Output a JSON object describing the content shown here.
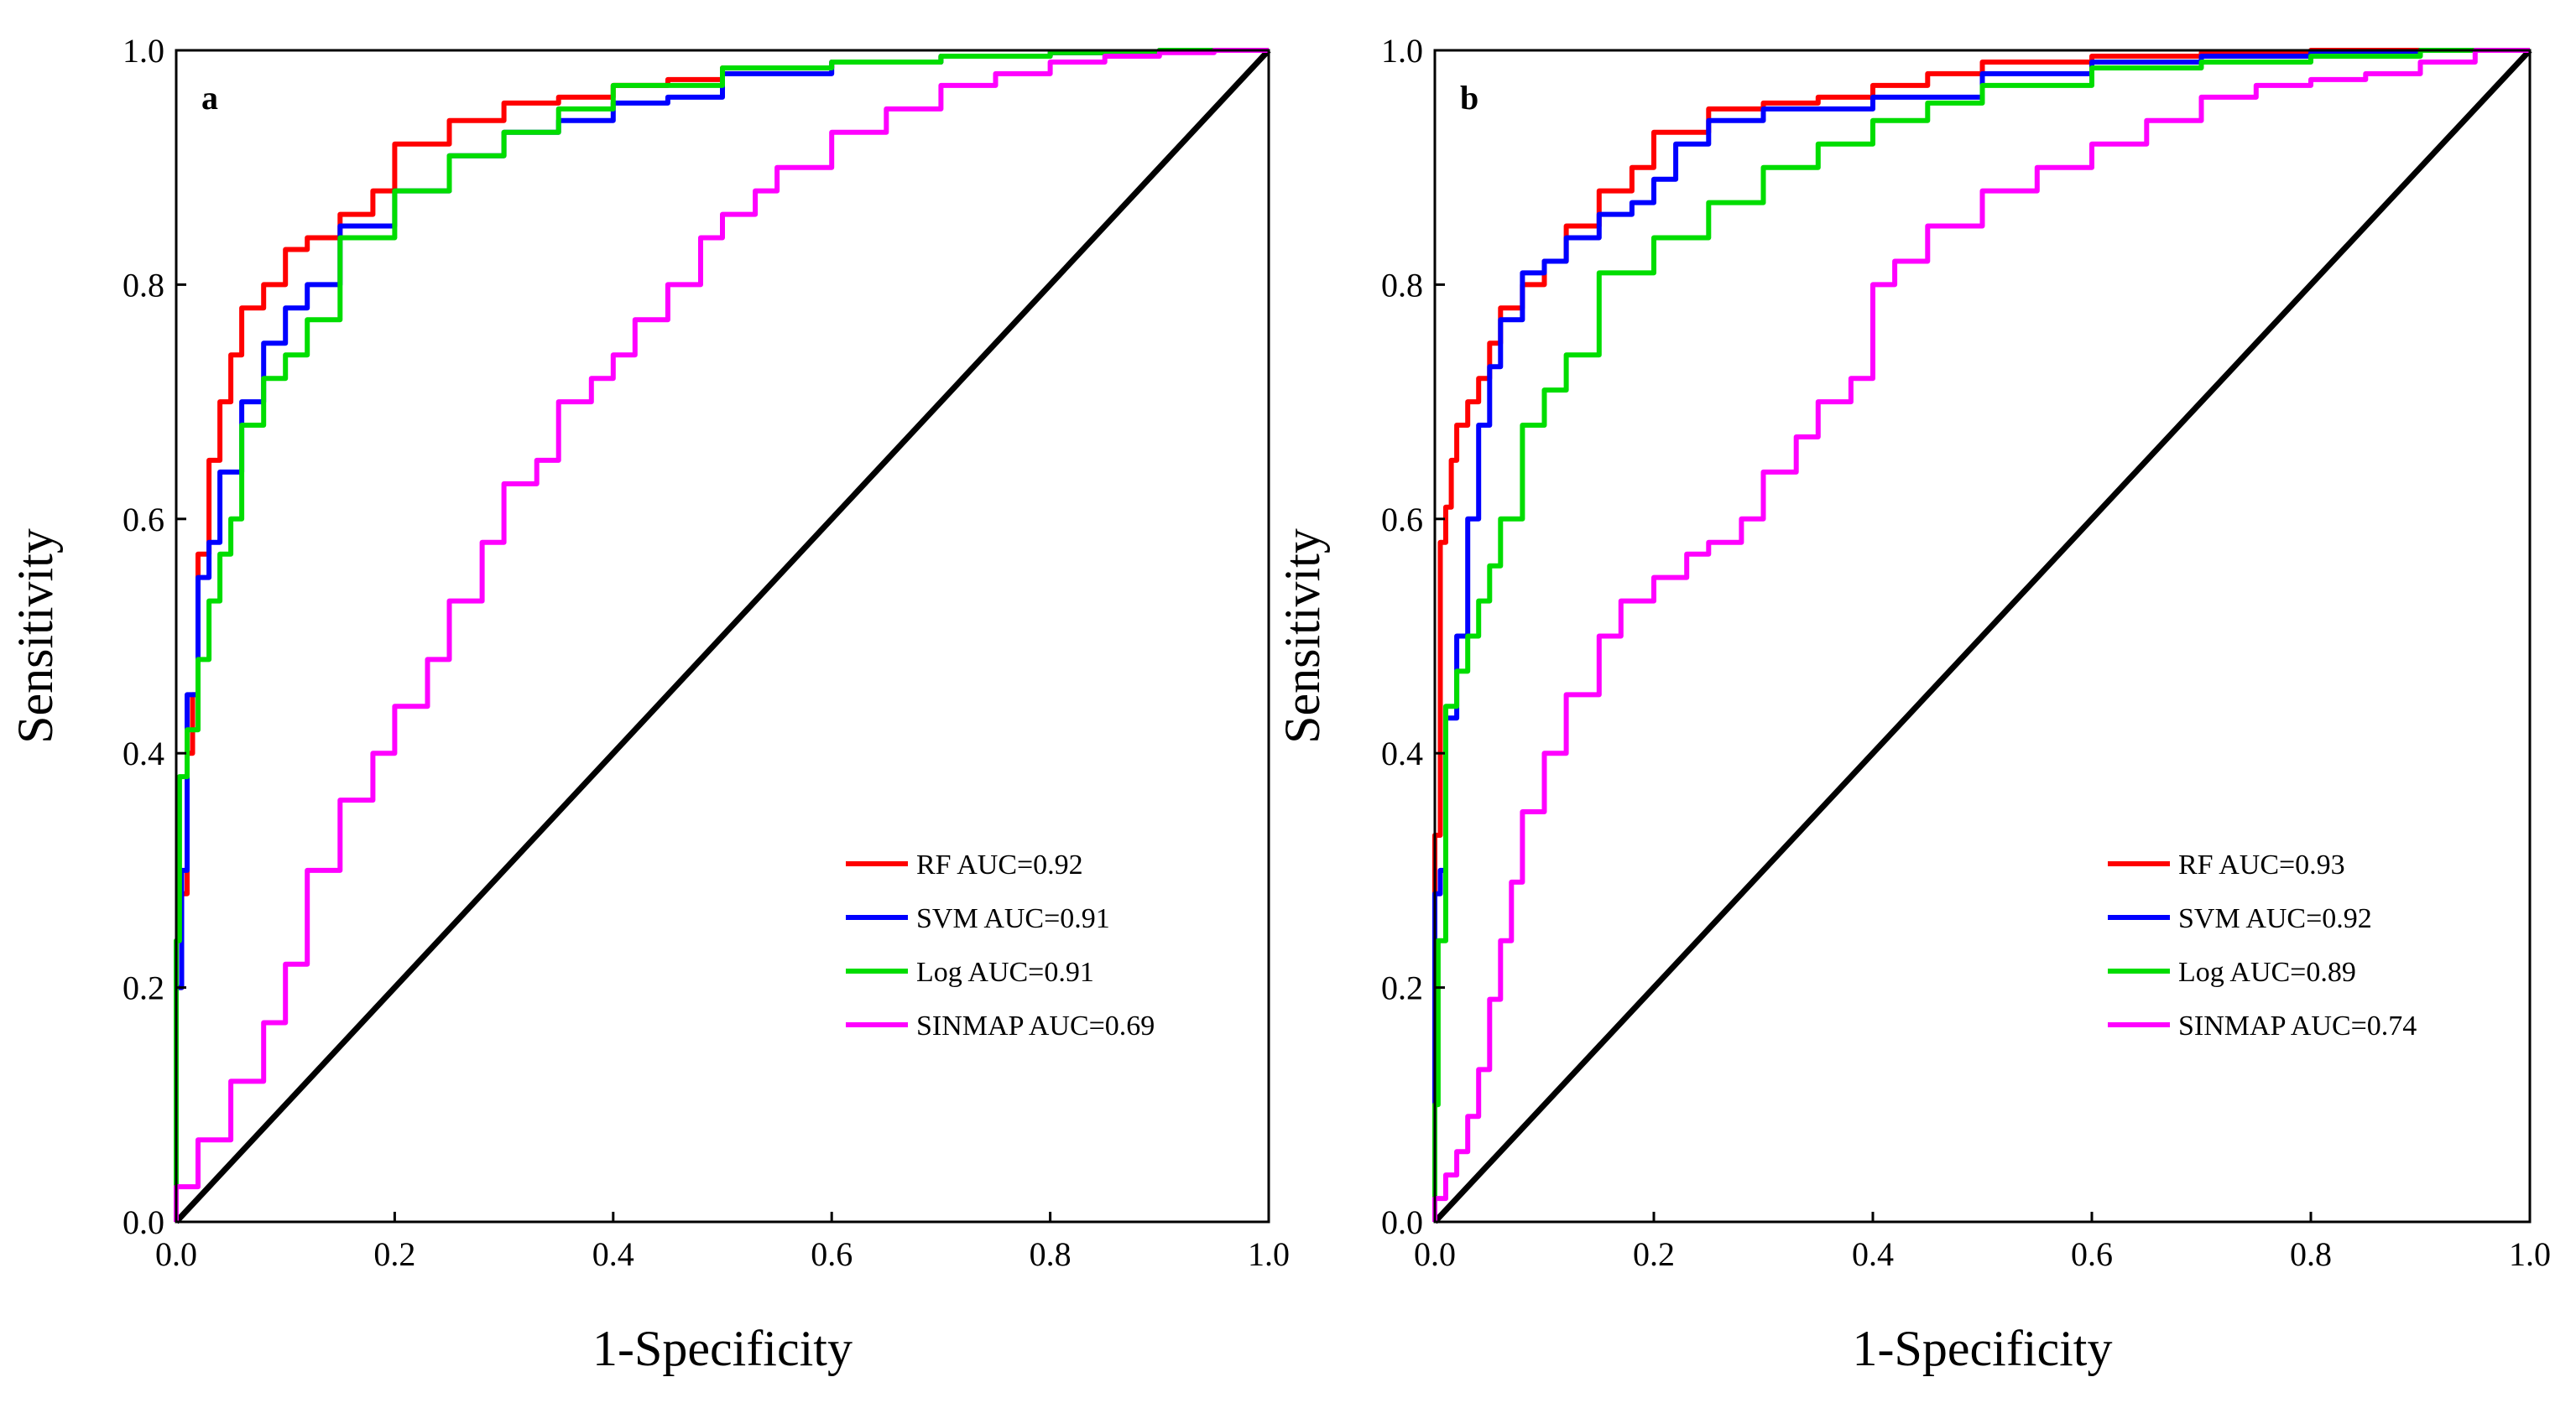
{
  "chart_data": [
    {
      "panel_label": "a",
      "type": "line",
      "xlabel": "1-Specificity",
      "ylabel": "Sensitivity",
      "xlim": [
        0,
        1
      ],
      "ylim": [
        0,
        1
      ],
      "x_ticks": [
        "0.0",
        "0.2",
        "0.4",
        "0.6",
        "0.8",
        "1.0"
      ],
      "y_ticks": [
        "0.0",
        "0.2",
        "0.4",
        "0.6",
        "0.8",
        "1.0"
      ],
      "legend_position": "bottom-right",
      "reference_line": {
        "name": "diagonal",
        "color": "#000000",
        "x": [
          0,
          1
        ],
        "y": [
          0,
          1
        ]
      },
      "series": [
        {
          "name": "RF",
          "label": "RF  AUC=0.92",
          "color": "#ff0000",
          "x": [
            0,
            0.005,
            0.01,
            0.015,
            0.02,
            0.03,
            0.04,
            0.05,
            0.06,
            0.08,
            0.1,
            0.12,
            0.15,
            0.18,
            0.2,
            0.25,
            0.3,
            0.35,
            0.4,
            0.45,
            0.5,
            0.6,
            0.7,
            0.8,
            0.9,
            1.0
          ],
          "y": [
            0,
            0.2,
            0.28,
            0.4,
            0.45,
            0.57,
            0.65,
            0.7,
            0.74,
            0.78,
            0.8,
            0.83,
            0.84,
            0.86,
            0.88,
            0.92,
            0.94,
            0.955,
            0.96,
            0.97,
            0.975,
            0.985,
            0.99,
            0.995,
            0.998,
            1.0
          ]
        },
        {
          "name": "SVM",
          "label": "SVM  AUC=0.91",
          "color": "#0000ff",
          "x": [
            0,
            0.005,
            0.01,
            0.02,
            0.03,
            0.04,
            0.06,
            0.08,
            0.1,
            0.12,
            0.15,
            0.2,
            0.25,
            0.3,
            0.35,
            0.4,
            0.45,
            0.5,
            0.6,
            0.7,
            0.8,
            0.9,
            1.0
          ],
          "y": [
            0,
            0.2,
            0.3,
            0.45,
            0.55,
            0.58,
            0.64,
            0.7,
            0.75,
            0.78,
            0.8,
            0.85,
            0.88,
            0.91,
            0.93,
            0.94,
            0.955,
            0.96,
            0.98,
            0.99,
            0.995,
            0.998,
            1.0
          ]
        },
        {
          "name": "Log",
          "label": "Log  AUC=0.91",
          "color": "#00dd00",
          "x": [
            0,
            0.003,
            0.01,
            0.02,
            0.03,
            0.04,
            0.05,
            0.06,
            0.08,
            0.1,
            0.12,
            0.15,
            0.2,
            0.25,
            0.3,
            0.35,
            0.4,
            0.5,
            0.6,
            0.7,
            0.8,
            0.9,
            1.0
          ],
          "y": [
            0,
            0.24,
            0.38,
            0.42,
            0.48,
            0.53,
            0.57,
            0.6,
            0.68,
            0.72,
            0.74,
            0.77,
            0.84,
            0.88,
            0.91,
            0.93,
            0.95,
            0.97,
            0.985,
            0.99,
            0.995,
            0.998,
            1.0
          ]
        },
        {
          "name": "SINMAP",
          "label": "SINMAP  AUC=0.69",
          "color": "#ff00ff",
          "x": [
            0,
            0.02,
            0.05,
            0.08,
            0.1,
            0.12,
            0.15,
            0.18,
            0.2,
            0.23,
            0.25,
            0.28,
            0.3,
            0.33,
            0.35,
            0.38,
            0.4,
            0.42,
            0.45,
            0.48,
            0.5,
            0.53,
            0.55,
            0.6,
            0.65,
            0.7,
            0.75,
            0.8,
            0.85,
            0.9,
            0.95,
            1.0
          ],
          "y": [
            0,
            0.03,
            0.07,
            0.12,
            0.17,
            0.22,
            0.3,
            0.36,
            0.4,
            0.44,
            0.48,
            0.53,
            0.58,
            0.63,
            0.65,
            0.7,
            0.72,
            0.74,
            0.77,
            0.8,
            0.84,
            0.86,
            0.88,
            0.9,
            0.93,
            0.95,
            0.97,
            0.98,
            0.99,
            0.995,
            0.998,
            1.0
          ]
        }
      ]
    },
    {
      "panel_label": "b",
      "type": "line",
      "xlabel": "1-Specificity",
      "ylabel": "Sensitivity",
      "xlim": [
        0,
        1
      ],
      "ylim": [
        0,
        1
      ],
      "x_ticks": [
        "0.0",
        "0.2",
        "0.4",
        "0.6",
        "0.8",
        "1.0"
      ],
      "y_ticks": [
        "0.0",
        "0.2",
        "0.4",
        "0.6",
        "0.8",
        "1.0"
      ],
      "legend_position": "bottom-right",
      "reference_line": {
        "name": "diagonal",
        "color": "#000000",
        "x": [
          0,
          1
        ],
        "y": [
          0,
          1
        ]
      },
      "series": [
        {
          "name": "RF",
          "label": "RF  AUC=0.93",
          "color": "#ff0000",
          "x": [
            0,
            0.005,
            0.01,
            0.015,
            0.02,
            0.03,
            0.04,
            0.05,
            0.06,
            0.08,
            0.1,
            0.12,
            0.15,
            0.18,
            0.2,
            0.25,
            0.3,
            0.35,
            0.4,
            0.45,
            0.5,
            0.6,
            0.7,
            0.8,
            0.9,
            1.0
          ],
          "y": [
            0,
            0.33,
            0.58,
            0.61,
            0.65,
            0.68,
            0.7,
            0.72,
            0.75,
            0.78,
            0.8,
            0.82,
            0.85,
            0.88,
            0.9,
            0.93,
            0.95,
            0.955,
            0.96,
            0.97,
            0.98,
            0.99,
            0.995,
            0.998,
            1.0,
            1.0
          ]
        },
        {
          "name": "SVM",
          "label": "SVM  AUC=0.92",
          "color": "#0000ff",
          "x": [
            0,
            0.005,
            0.01,
            0.02,
            0.03,
            0.04,
            0.05,
            0.06,
            0.08,
            0.1,
            0.12,
            0.15,
            0.18,
            0.2,
            0.22,
            0.25,
            0.3,
            0.4,
            0.5,
            0.6,
            0.7,
            0.8,
            0.9,
            1.0
          ],
          "y": [
            0,
            0.28,
            0.3,
            0.43,
            0.5,
            0.6,
            0.68,
            0.73,
            0.77,
            0.81,
            0.82,
            0.84,
            0.86,
            0.87,
            0.89,
            0.92,
            0.94,
            0.95,
            0.96,
            0.98,
            0.99,
            0.995,
            0.998,
            1.0
          ]
        },
        {
          "name": "Log",
          "label": "Log  AUC=0.89",
          "color": "#00dd00",
          "x": [
            0,
            0.003,
            0.01,
            0.02,
            0.03,
            0.04,
            0.05,
            0.06,
            0.08,
            0.1,
            0.12,
            0.15,
            0.2,
            0.25,
            0.3,
            0.35,
            0.4,
            0.45,
            0.5,
            0.6,
            0.7,
            0.8,
            0.9,
            1.0
          ],
          "y": [
            0,
            0.1,
            0.24,
            0.44,
            0.47,
            0.5,
            0.53,
            0.56,
            0.6,
            0.68,
            0.71,
            0.74,
            0.81,
            0.84,
            0.87,
            0.9,
            0.92,
            0.94,
            0.955,
            0.97,
            0.985,
            0.99,
            0.995,
            1.0
          ]
        },
        {
          "name": "SINMAP",
          "label": "SINMAP  AUC=0.74",
          "color": "#ff00ff",
          "x": [
            0,
            0.01,
            0.02,
            0.03,
            0.04,
            0.05,
            0.06,
            0.07,
            0.08,
            0.1,
            0.12,
            0.15,
            0.17,
            0.2,
            0.23,
            0.25,
            0.28,
            0.3,
            0.33,
            0.35,
            0.38,
            0.4,
            0.42,
            0.45,
            0.5,
            0.55,
            0.6,
            0.65,
            0.7,
            0.75,
            0.8,
            0.85,
            0.9,
            0.95,
            1.0
          ],
          "y": [
            0,
            0.02,
            0.04,
            0.06,
            0.09,
            0.13,
            0.19,
            0.24,
            0.29,
            0.35,
            0.4,
            0.45,
            0.5,
            0.53,
            0.55,
            0.57,
            0.58,
            0.6,
            0.64,
            0.67,
            0.7,
            0.72,
            0.8,
            0.82,
            0.85,
            0.88,
            0.9,
            0.92,
            0.94,
            0.96,
            0.97,
            0.975,
            0.98,
            0.99,
            1.0
          ]
        }
      ]
    }
  ]
}
